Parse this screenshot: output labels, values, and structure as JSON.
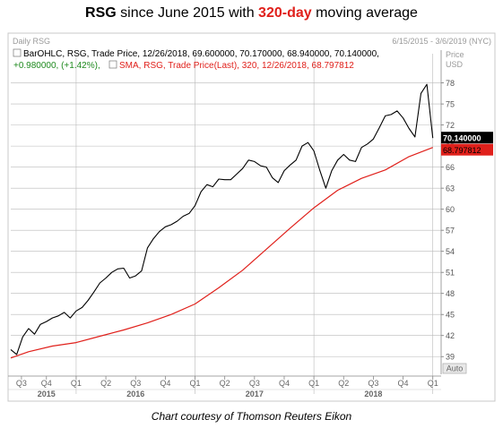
{
  "title": {
    "part1": "RSG",
    "part2": " since June 2015 with ",
    "part3": "320-day",
    "part4": " moving average"
  },
  "caption": "Chart courtesy of Thomson Reuters Eikon",
  "colors": {
    "price": "#000000",
    "sma": "#e0201b",
    "grid": "#b9b9b9",
    "frame": "#c8c8c8"
  },
  "chart_data": {
    "type": "line",
    "panel_title": "Daily RSG",
    "date_range": "6/15/2015 - 3/6/2019 (NYC)",
    "legend": [
      {
        "icon": "bar-ohlc-icon",
        "text": "BarOHLC, RSG, Trade Price, 12/26/2018, 69.600000, 70.170000, 68.940000, 70.140000,",
        "color": "#000000"
      },
      {
        "icon": "",
        "text": "+0.980000, (+1.42%),",
        "color": "#1f8a1f"
      },
      {
        "icon": "sma-icon",
        "text": "SMA, RSG, Trade Price(Last),  320,  12/26/2018, 68.797812",
        "color": "#e0201b"
      }
    ],
    "y_axis": {
      "label": "Price",
      "unit": "USD",
      "ticks": [
        39,
        42,
        45,
        48,
        51,
        54,
        57,
        60,
        63,
        66,
        69,
        72,
        75,
        78
      ],
      "ylim": [
        37.5,
        80.5
      ]
    },
    "x_axis": {
      "quarters": [
        {
          "label": "Q3",
          "x": 2015.54
        },
        {
          "label": "Q4",
          "x": 2015.75
        },
        {
          "label": "Q1",
          "x": 2016.0
        },
        {
          "label": "Q2",
          "x": 2016.25
        },
        {
          "label": "Q3",
          "x": 2016.5
        },
        {
          "label": "Q4",
          "x": 2016.75
        },
        {
          "label": "Q1",
          "x": 2017.0
        },
        {
          "label": "Q2",
          "x": 2017.25
        },
        {
          "label": "Q3",
          "x": 2017.5
        },
        {
          "label": "Q4",
          "x": 2017.75
        },
        {
          "label": "Q1",
          "x": 2018.0
        },
        {
          "label": "Q2",
          "x": 2018.25
        },
        {
          "label": "Q3",
          "x": 2018.5
        },
        {
          "label": "Q4",
          "x": 2018.75
        },
        {
          "label": "Q1",
          "x": 2019.0
        }
      ],
      "years": [
        {
          "label": "2015",
          "x": 2015.75
        },
        {
          "label": "2016",
          "x": 2016.5
        },
        {
          "label": "2017",
          "x": 2017.5
        },
        {
          "label": "2018",
          "x": 2018.5
        }
      ],
      "year_boundaries": [
        2016.0,
        2017.0,
        2018.0,
        2019.0
      ],
      "xlim": [
        2015.45,
        2019.07
      ]
    },
    "last_price": {
      "value": "70.140000",
      "y": 70.14
    },
    "last_sma": {
      "value": "68.797812",
      "y": 68.8
    },
    "auto_label": "Auto",
    "grid": true,
    "series": [
      {
        "name": "BarOHLC, RSG, Trade Price",
        "color": "#000000",
        "x": [
          2015.45,
          2015.5,
          2015.55,
          2015.6,
          2015.65,
          2015.7,
          2015.75,
          2015.8,
          2015.85,
          2015.9,
          2015.95,
          2016.0,
          2016.05,
          2016.1,
          2016.15,
          2016.2,
          2016.25,
          2016.3,
          2016.35,
          2016.4,
          2016.45,
          2016.5,
          2016.55,
          2016.6,
          2016.65,
          2016.7,
          2016.75,
          2016.8,
          2016.85,
          2016.9,
          2016.95,
          2017.0,
          2017.05,
          2017.1,
          2017.15,
          2017.2,
          2017.25,
          2017.3,
          2017.35,
          2017.4,
          2017.45,
          2017.5,
          2017.55,
          2017.6,
          2017.65,
          2017.7,
          2017.75,
          2017.8,
          2017.85,
          2017.9,
          2017.95,
          2018.0,
          2018.05,
          2018.1,
          2018.15,
          2018.2,
          2018.25,
          2018.3,
          2018.35,
          2018.4,
          2018.45,
          2018.5,
          2018.55,
          2018.6,
          2018.65,
          2018.7,
          2018.75,
          2018.8,
          2018.85,
          2018.9,
          2018.95,
          2019.0
        ],
        "values": [
          40.0,
          39.3,
          41.8,
          43.0,
          42.2,
          43.6,
          44.0,
          44.5,
          44.8,
          45.3,
          44.5,
          45.5,
          46.0,
          47.0,
          48.2,
          49.5,
          50.2,
          51.0,
          51.5,
          51.6,
          50.2,
          50.5,
          51.2,
          54.5,
          55.8,
          56.8,
          57.5,
          57.8,
          58.3,
          59.0,
          59.4,
          60.5,
          62.5,
          63.5,
          63.2,
          64.3,
          64.2,
          64.2,
          65.0,
          65.8,
          67.0,
          66.8,
          66.2,
          66.0,
          64.5,
          63.8,
          65.5,
          66.3,
          67.0,
          69.0,
          69.5,
          68.3,
          65.5,
          63.0,
          65.5,
          67.0,
          67.8,
          67.0,
          66.8,
          68.8,
          69.3,
          70.0,
          71.6,
          73.3,
          73.5,
          74.0,
          73.0,
          71.5,
          70.3,
          76.5,
          77.8,
          70.14
        ]
      },
      {
        "name": "SMA, RSG, Trade Price(Last), 320",
        "color": "#e0201b",
        "x": [
          2015.45,
          2015.6,
          2015.8,
          2016.0,
          2016.2,
          2016.4,
          2016.6,
          2016.8,
          2017.0,
          2017.2,
          2017.4,
          2017.6,
          2017.8,
          2018.0,
          2018.2,
          2018.4,
          2018.6,
          2018.8,
          2019.0
        ],
        "values": [
          38.8,
          39.7,
          40.5,
          41.0,
          41.9,
          42.8,
          43.8,
          45.0,
          46.5,
          48.8,
          51.3,
          54.3,
          57.3,
          60.2,
          62.7,
          64.4,
          65.6,
          67.5,
          68.8
        ]
      }
    ]
  }
}
